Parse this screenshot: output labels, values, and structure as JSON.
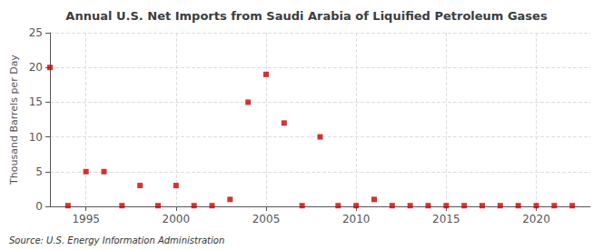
{
  "chart_data": {
    "type": "scatter",
    "title": "Annual U.S. Net Imports from Saudi Arabia of Liquified Petroleum Gases",
    "ylabel": "Thousand Barrels per Day",
    "annotation": "Source: U.S. Energy Information Administration",
    "x": [
      1993,
      1994,
      1995,
      1996,
      1997,
      1998,
      1999,
      2000,
      2001,
      2002,
      2003,
      2004,
      2005,
      2006,
      2007,
      2008,
      2009,
      2010,
      2011,
      2012,
      2013,
      2014,
      2015,
      2016,
      2017,
      2018,
      2019,
      2020,
      2021,
      2022
    ],
    "values": [
      20.0,
      0.1,
      5.0,
      5.0,
      0.1,
      3.0,
      0.1,
      3.0,
      0.1,
      0.1,
      1.0,
      15.0,
      19.0,
      12.0,
      0.1,
      10.0,
      0.1,
      0.1,
      1.0,
      0.1,
      0.1,
      0.1,
      0.1,
      0.1,
      0.1,
      0.1,
      0.1,
      0.1,
      0.1,
      0.1
    ],
    "color": "#cc0000",
    "marker": "square",
    "xlim": [
      1993,
      2023
    ],
    "xticks": [
      1995,
      2000,
      2005,
      2010,
      2015,
      2020
    ],
    "ylim": [
      0,
      25
    ],
    "yticks": [
      0,
      5,
      10,
      15,
      20,
      25
    ],
    "grid": true
  }
}
